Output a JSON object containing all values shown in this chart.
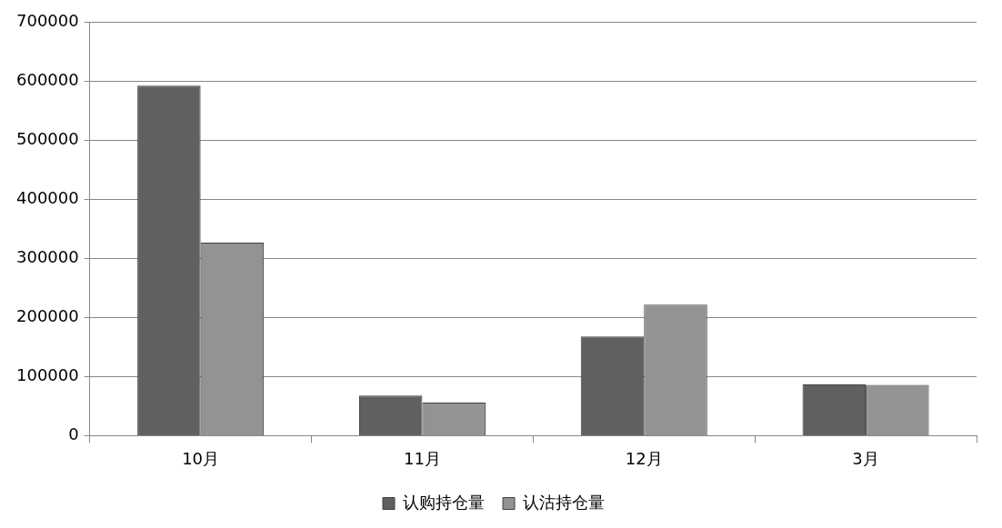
{
  "chart_data": {
    "type": "bar",
    "categories": [
      "10月",
      "11月",
      "12月",
      "3月"
    ],
    "series": [
      {
        "name": "认购持仓量",
        "color": "#606060",
        "values": [
          593000,
          68000,
          168000,
          87000
        ]
      },
      {
        "name": "认沽持仓量",
        "color": "#939393",
        "values": [
          327000,
          56000,
          222000,
          86000
        ]
      }
    ],
    "ylim": [
      0,
      700000
    ],
    "yticks": [
      0,
      100000,
      200000,
      300000,
      400000,
      500000,
      600000,
      700000
    ],
    "grid": "y",
    "legend": "bottom"
  }
}
